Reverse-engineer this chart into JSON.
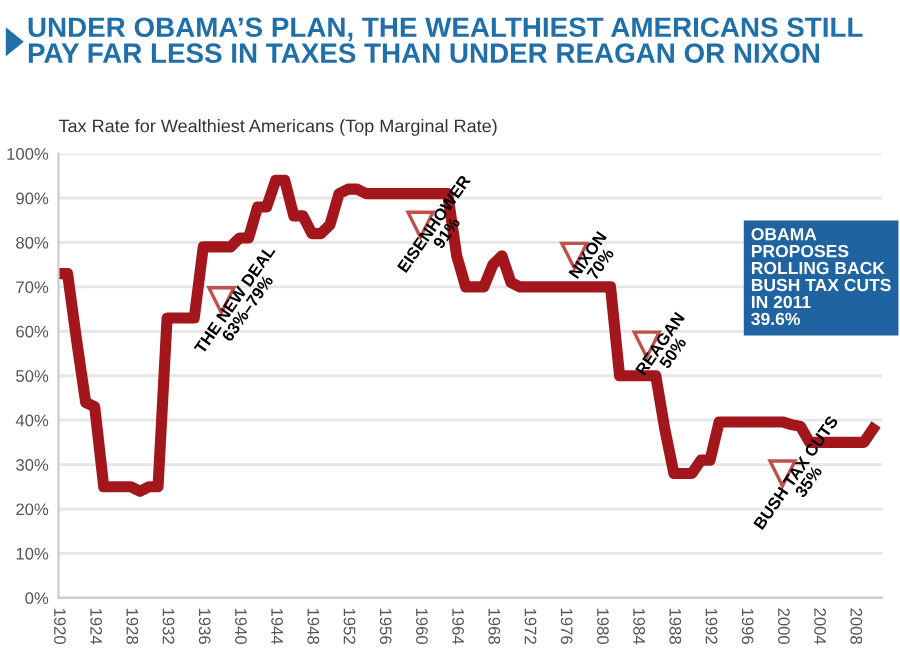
{
  "chart_data": {
    "type": "line",
    "title": "UNDER OBAMA’S PLAN, THE WEALTHIEST AMERICANS STILL\nPAY FAR LESS IN TAXES THAN UNDER REAGAN OR NIXON",
    "subtitle": "Tax Rate for Wealthiest Americans (Top Marginal Rate)",
    "x": [
      1920,
      1921,
      1922,
      1923,
      1924,
      1925,
      1926,
      1927,
      1928,
      1929,
      1930,
      1931,
      1932,
      1933,
      1934,
      1935,
      1936,
      1937,
      1938,
      1939,
      1940,
      1941,
      1942,
      1943,
      1944,
      1945,
      1946,
      1947,
      1948,
      1949,
      1950,
      1951,
      1952,
      1953,
      1954,
      1955,
      1956,
      1957,
      1958,
      1959,
      1960,
      1961,
      1962,
      1963,
      1964,
      1965,
      1966,
      1967,
      1968,
      1969,
      1970,
      1971,
      1972,
      1973,
      1974,
      1975,
      1976,
      1977,
      1978,
      1979,
      1980,
      1981,
      1982,
      1983,
      1984,
      1985,
      1986,
      1987,
      1988,
      1989,
      1990,
      1991,
      1992,
      1993,
      1994,
      1995,
      1996,
      1997,
      1998,
      1999,
      2000,
      2001,
      2002,
      2003,
      2004,
      2005,
      2006,
      2007,
      2008,
      2009,
      2010
    ],
    "series": [
      {
        "color": "#a3171c",
        "values": [
          73,
          73,
          58,
          44,
          43,
          25,
          25,
          25,
          25,
          24,
          25,
          25,
          63,
          63,
          63,
          63,
          79,
          79,
          79,
          79,
          81,
          81,
          88,
          88,
          94,
          94,
          86,
          86,
          82,
          82,
          84,
          91,
          92,
          92,
          91,
          91,
          91,
          91,
          91,
          91,
          91,
          91,
          91,
          91,
          77,
          70,
          70,
          70,
          75,
          77,
          71,
          70,
          70,
          70,
          70,
          70,
          70,
          70,
          70,
          70,
          70,
          70,
          50,
          50,
          50,
          50,
          50,
          38,
          28,
          28,
          28,
          31,
          31,
          39.6,
          39.6,
          39.6,
          39.6,
          39.6,
          39.6,
          39.6,
          39.6,
          39,
          38.6,
          35,
          35,
          35,
          35,
          35,
          35,
          35,
          38
        ]
      }
    ],
    "xlim": [
      1920,
      2011
    ],
    "xticks": [
      1920,
      1924,
      1928,
      1932,
      1936,
      1940,
      1944,
      1948,
      1952,
      1956,
      1960,
      1964,
      1968,
      1972,
      1976,
      1980,
      1984,
      1988,
      1992,
      1996,
      2000,
      2004,
      2008
    ],
    "ylim": [
      0,
      100
    ],
    "yticks": [
      {
        "value": 0,
        "label": "0%"
      },
      {
        "value": 10,
        "label": "10%"
      },
      {
        "value": 20,
        "label": "20%"
      },
      {
        "value": 30,
        "label": "30%"
      },
      {
        "value": 40,
        "label": "40%"
      },
      {
        "value": 50,
        "label": "50%"
      },
      {
        "value": 60,
        "label": "60%"
      },
      {
        "value": 70,
        "label": "70%"
      },
      {
        "value": 80,
        "label": "80%"
      },
      {
        "value": 90,
        "label": "90%"
      },
      {
        "value": 100,
        "label": "100%"
      }
    ],
    "grid": "y",
    "marker": "none",
    "line_style": "solid",
    "annotations": [
      {
        "text": "THE NEW DEAL\n63%–79%",
        "x": 1938,
        "y": 67
      },
      {
        "text": "EISENHOWER\n91%",
        "x": 1960,
        "y": 84
      },
      {
        "text": "NIXON\n70%",
        "x": 1977,
        "y": 77
      },
      {
        "text": "REAGAN\n50%",
        "x": 1985,
        "y": 57
      },
      {
        "text": "BUSH TAX CUTS\n35%",
        "x": 2000,
        "y": 28
      },
      "OBAMA\nPROPOSES\nROLLING BACK\nBUSH TAX CUTS\nIN 2011\n39.6%"
    ]
  }
}
